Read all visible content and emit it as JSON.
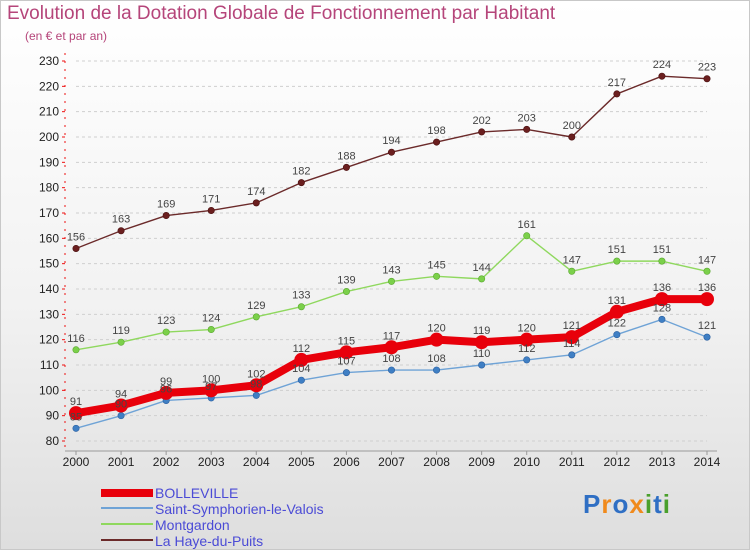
{
  "header": {
    "title": "Evolution de la Dotation Globale de Fonctionnement par Habitant",
    "subtitle": "(en € et par an)"
  },
  "logo": {
    "text": "Proxiti",
    "colors": [
      "#2f6fc4",
      "#f08a1c",
      "#2f6fc4",
      "#f08a1c",
      "#4aa02c",
      "#2f6fc4",
      "#4aa02c"
    ]
  },
  "chart_data": {
    "type": "line",
    "title": "Evolution de la Dotation Globale de Fonctionnement par Habitant",
    "subtitle": "(en € et par an)",
    "xlabel": "",
    "ylabel": "",
    "ylim": [
      80,
      230
    ],
    "yticks": [
      80,
      90,
      100,
      110,
      120,
      130,
      140,
      150,
      160,
      170,
      180,
      190,
      200,
      210,
      220,
      230
    ],
    "x": [
      "2000",
      "2001",
      "2002",
      "2003",
      "2004",
      "2005",
      "2006",
      "2007",
      "2008",
      "2009",
      "2010",
      "2011",
      "2012",
      "2013",
      "2014"
    ],
    "series": [
      {
        "name": "BOLLEVILLE",
        "color": "#e8000b",
        "values": [
          91,
          94,
          99,
          100,
          102,
          112,
          115,
          117,
          120,
          119,
          120,
          121,
          131,
          136,
          136
        ]
      },
      {
        "name": "Saint-Symphorien-le-Valois",
        "color": "#6fa3d6",
        "values": [
          85,
          90,
          96,
          97,
          98,
          104,
          107,
          108,
          108,
          110,
          112,
          114,
          122,
          128,
          121
        ]
      },
      {
        "name": "Montgardon",
        "color": "#8fd85e",
        "values": [
          116,
          119,
          123,
          124,
          129,
          133,
          139,
          143,
          145,
          144,
          161,
          147,
          151,
          151,
          147
        ]
      },
      {
        "name": "La Haye-du-Puits",
        "color": "#6b2a2a",
        "values": [
          156,
          163,
          169,
          171,
          174,
          182,
          188,
          194,
          198,
          202,
          203,
          200,
          217,
          224,
          223
        ]
      }
    ],
    "grid": "horizontal dashed",
    "legend": "bottom-left"
  }
}
